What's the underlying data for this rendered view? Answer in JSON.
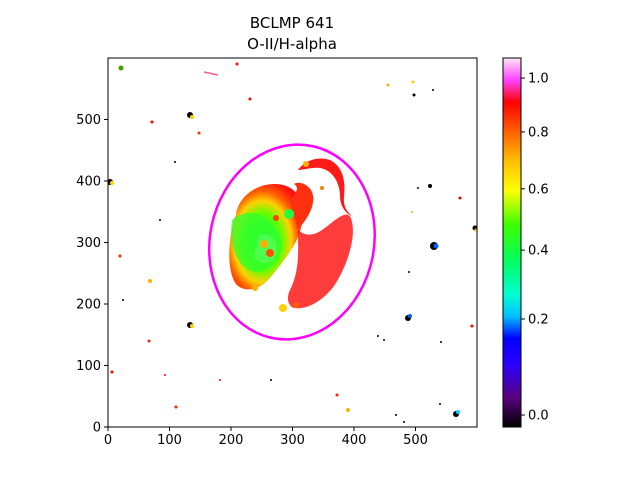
{
  "title": {
    "line1": "BCLMP 641",
    "line2": "O-II/H-alpha"
  },
  "axes": {
    "x_ticks": [
      "0",
      "100",
      "200",
      "300",
      "400",
      "500"
    ],
    "y_ticks": [
      "0",
      "100",
      "200",
      "300",
      "400",
      "500"
    ],
    "xlim": [
      0,
      600
    ],
    "ylim": [
      0,
      600
    ]
  },
  "colorbar": {
    "ticks": [
      "0.0",
      "0.2",
      "0.4",
      "0.6",
      "0.8",
      "1.0"
    ],
    "range": [
      0.0,
      1.05
    ],
    "colormap": "gist_ncar-like",
    "scale": "nonlinear"
  },
  "overlay": {
    "ellipse_color": "#ff00ff"
  },
  "colors": {
    "frame": "#000000",
    "background": "#ffffff"
  }
}
